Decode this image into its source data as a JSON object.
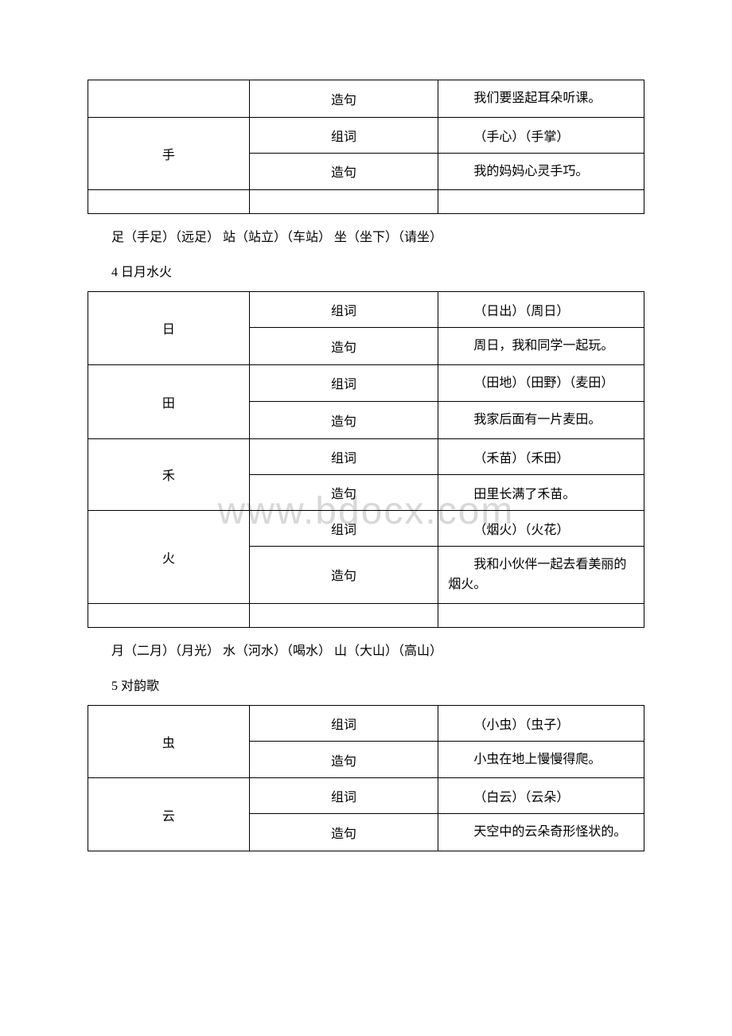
{
  "watermark": "www.bdocx.com",
  "table1": {
    "rows": [
      {
        "char": "",
        "type": "造句",
        "content": "我们要竖起耳朵听课。"
      },
      {
        "char": "手",
        "type": "组词",
        "content": "（手心）（手掌）"
      },
      {
        "char": "",
        "type": "造句",
        "content": "我的妈妈心灵手巧。"
      }
    ]
  },
  "text1": "足（手足）（远足）  站（站立）（车站）  坐（坐下）（请坐）",
  "heading1": "4 日月水火",
  "table2": {
    "rows": [
      {
        "char": "日",
        "type": "组词",
        "content": "（日出）（周日）"
      },
      {
        "char": "",
        "type": "造句",
        "content": "周日，我和同学一起玩。"
      },
      {
        "char": "田",
        "type": "组词",
        "content": "（田地）（田野）（麦田）"
      },
      {
        "char": "",
        "type": "造句",
        "content": "我家后面有一片麦田。"
      },
      {
        "char": "禾",
        "type": "组词",
        "content": "（禾苗）（禾田）"
      },
      {
        "char": "",
        "type": "造句",
        "content": "田里长满了禾苗。"
      },
      {
        "char": "火",
        "type": "组词",
        "content": "（烟火）（火花）"
      },
      {
        "char": "",
        "type": "造句",
        "content": "我和小伙伴一起去看美丽的烟火。"
      }
    ]
  },
  "text2": "月（二月）（月光）  水（河水）（喝水）  山（大山）（高山）",
  "heading2": "5 对韵歌",
  "table3": {
    "rows": [
      {
        "char": "虫",
        "type": "组词",
        "content": "（小虫）（虫子）"
      },
      {
        "char": "",
        "type": "造句",
        "content": "小虫在地上慢慢得爬。"
      },
      {
        "char": "云",
        "type": "组词",
        "content": "（白云）（云朵）"
      },
      {
        "char": "",
        "type": "造句",
        "content": "天空中的云朵奇形怪状的。"
      }
    ]
  },
  "style": {
    "border_color": "#000000",
    "background_color": "#ffffff",
    "watermark_color": "#d8d8d8",
    "font_size_body": 16,
    "font_size_watermark": 48
  }
}
